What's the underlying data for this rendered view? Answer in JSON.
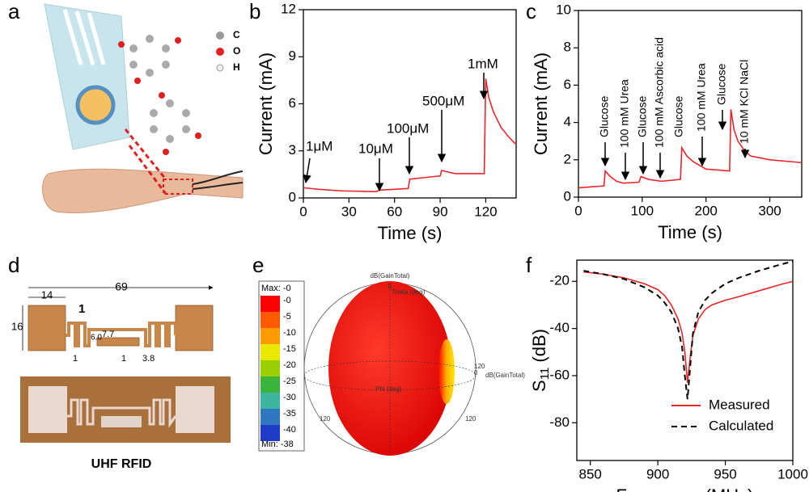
{
  "panel_labels": [
    "a",
    "b",
    "c",
    "d",
    "e",
    "f"
  ],
  "atom_legend": [
    "C",
    "O",
    "H"
  ],
  "chart_data": [
    {
      "type": "line",
      "xlabel": "Time (s)",
      "ylabel": "Current (mA)",
      "x": [
        0,
        10,
        25,
        40,
        48,
        50,
        60,
        69,
        70,
        80,
        90,
        91,
        100,
        110,
        119,
        120,
        122,
        125,
        130,
        135,
        140
      ],
      "series": [
        {
          "color": "#e8262a",
          "values": [
            0.65,
            0.55,
            0.45,
            0.42,
            0.4,
            0.5,
            0.55,
            0.6,
            1.2,
            1.3,
            1.4,
            1.75,
            1.55,
            1.55,
            1.55,
            7.6,
            6.4,
            5.5,
            4.5,
            3.9,
            3.4
          ]
        }
      ],
      "xlim": [
        0,
        140
      ],
      "xticks": [
        0,
        30,
        60,
        90,
        120
      ],
      "ylim": [
        0,
        12
      ],
      "yticks": [
        0,
        3,
        6,
        9,
        12
      ],
      "annotations": [
        "1μM",
        "10μM",
        "100μM",
        "500μM",
        "1mM"
      ]
    },
    {
      "type": "line",
      "xlabel": "Time (s)",
      "ylabel": "Current (mA)",
      "x": [
        0,
        20,
        40,
        42,
        50,
        60,
        70,
        95,
        98,
        110,
        130,
        145,
        160,
        162,
        170,
        180,
        200,
        220,
        237,
        239,
        244,
        250,
        260,
        270,
        300,
        350
      ],
      "series": [
        {
          "color": "#e8262a",
          "values": [
            0.5,
            0.55,
            0.6,
            1.4,
            1.1,
            0.85,
            0.75,
            0.8,
            1.1,
            0.95,
            0.85,
            0.9,
            0.95,
            2.65,
            2.2,
            1.9,
            1.5,
            1.45,
            1.4,
            4.7,
            3.6,
            3.0,
            2.5,
            2.2,
            2.0,
            1.85
          ]
        }
      ],
      "xlim": [
        0,
        350
      ],
      "xticks": [
        0,
        100,
        200,
        300
      ],
      "ylim": [
        0,
        10
      ],
      "yticks": [
        0,
        2,
        4,
        6,
        8,
        10
      ],
      "annotations": [
        "Glucose",
        "100 mM Urea",
        "Glucose",
        "100 mM Ascorbic acid",
        "Glucose",
        "100 mM Urea",
        "Glucose",
        "10 mM KCl NaCl"
      ]
    },
    {
      "type": "line",
      "xlabel": "Frequency (MHz)",
      "ylabel": [
        "S",
        "11",
        " (dB)"
      ],
      "x": [
        845,
        860,
        875,
        890,
        900,
        905,
        910,
        915,
        918,
        920,
        922,
        924,
        926,
        930,
        935,
        940,
        950,
        960,
        975,
        990,
        1000
      ],
      "series": [
        {
          "name": "Measured",
          "color": "#e8262a",
          "dash": false,
          "values": [
            -16,
            -17,
            -18.5,
            -21,
            -23.5,
            -26,
            -30,
            -36,
            -42,
            -50,
            -63,
            -52,
            -43,
            -36,
            -32,
            -30,
            -28,
            -26.5,
            -24,
            -21.5,
            -20
          ]
        },
        {
          "name": "Calculated",
          "color": "#000000",
          "dash": true,
          "values": [
            -15.5,
            -17,
            -19,
            -22.5,
            -26,
            -29,
            -33,
            -40,
            -48,
            -60,
            -70,
            -56,
            -42,
            -33,
            -28,
            -25,
            -21,
            -18.5,
            -15.5,
            -13,
            -11.5
          ]
        }
      ],
      "xlim": [
        840,
        1000
      ],
      "xticks": [
        850,
        900,
        950,
        1000
      ],
      "ylim": [
        -96,
        -11
      ],
      "yticks": [
        -20,
        -40,
        -60,
        -80
      ],
      "legend": "lower right"
    }
  ],
  "rfid": {
    "dimensions": [
      "69",
      "14",
      "16",
      "1",
      "6.0",
      "7.7",
      "1",
      "1",
      "3.8"
    ],
    "caption": "UHF RFID"
  },
  "pattern": {
    "max_label": "Max: -0",
    "min_label": "Min: -38",
    "levels": [
      {
        "value": 0,
        "label": "-0"
      },
      -5,
      -10,
      -15,
      -20,
      -25,
      -30,
      -35,
      -40
    ],
    "colors": [
      "#ff0000",
      "#ff5a00",
      "#ff9a00",
      "#e8e800",
      "#9ad000",
      "#3cb43c",
      "#3cb4a0",
      "#2f78c0",
      "#1e3cc8"
    ],
    "labels": [
      "dB(GainTotal)",
      "Theta (deg)",
      "0",
      "120",
      "0",
      "dB(GainTotal)",
      "Phi (deg)",
      "120",
      "120"
    ]
  }
}
